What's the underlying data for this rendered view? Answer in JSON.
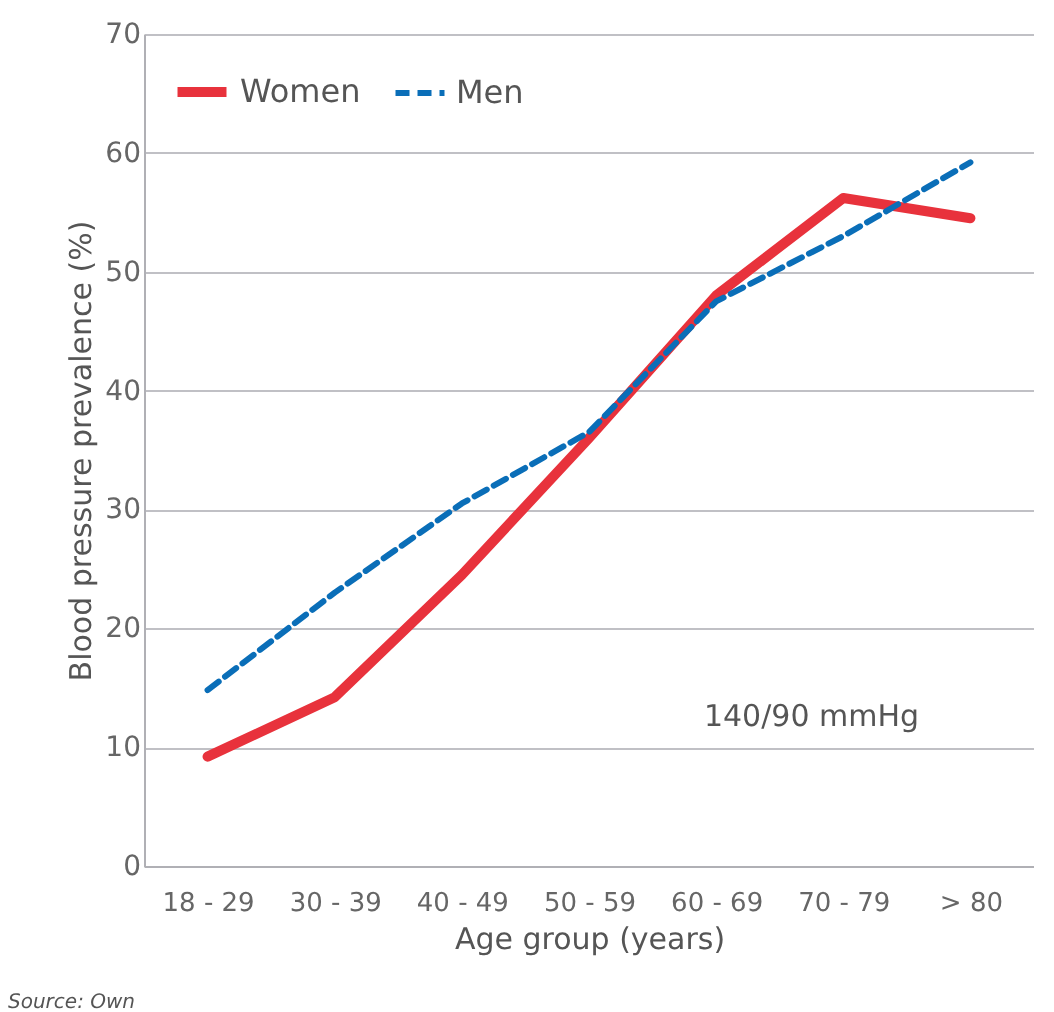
{
  "chart_data": {
    "type": "line",
    "xlabel": "Age group (years)",
    "ylabel": "Blood pressure prevalence  (%)",
    "categories": [
      "18 - 29",
      "30 - 39",
      "40 - 49",
      "50 - 59",
      "60 - 69",
      "70 - 79",
      "> 80"
    ],
    "series": [
      {
        "name": "Women",
        "color": "#e8323c",
        "line_style": "solid",
        "values": [
          9.2,
          14.2,
          24.5,
          36,
          48,
          56.2,
          54.5
        ]
      },
      {
        "name": "Men",
        "color": "#0a6eb8",
        "line_style": "dashed",
        "values": [
          14.8,
          23,
          30.5,
          36.5,
          47.5,
          53,
          59.2
        ]
      }
    ],
    "ylim": [
      0,
      70
    ],
    "yticks": [
      0,
      10,
      20,
      30,
      40,
      50,
      60,
      70
    ],
    "grid": "y",
    "legend": "top left",
    "marker": "none",
    "annotations": [
      "140/90 mmHg",
      "Source: Own"
    ]
  }
}
